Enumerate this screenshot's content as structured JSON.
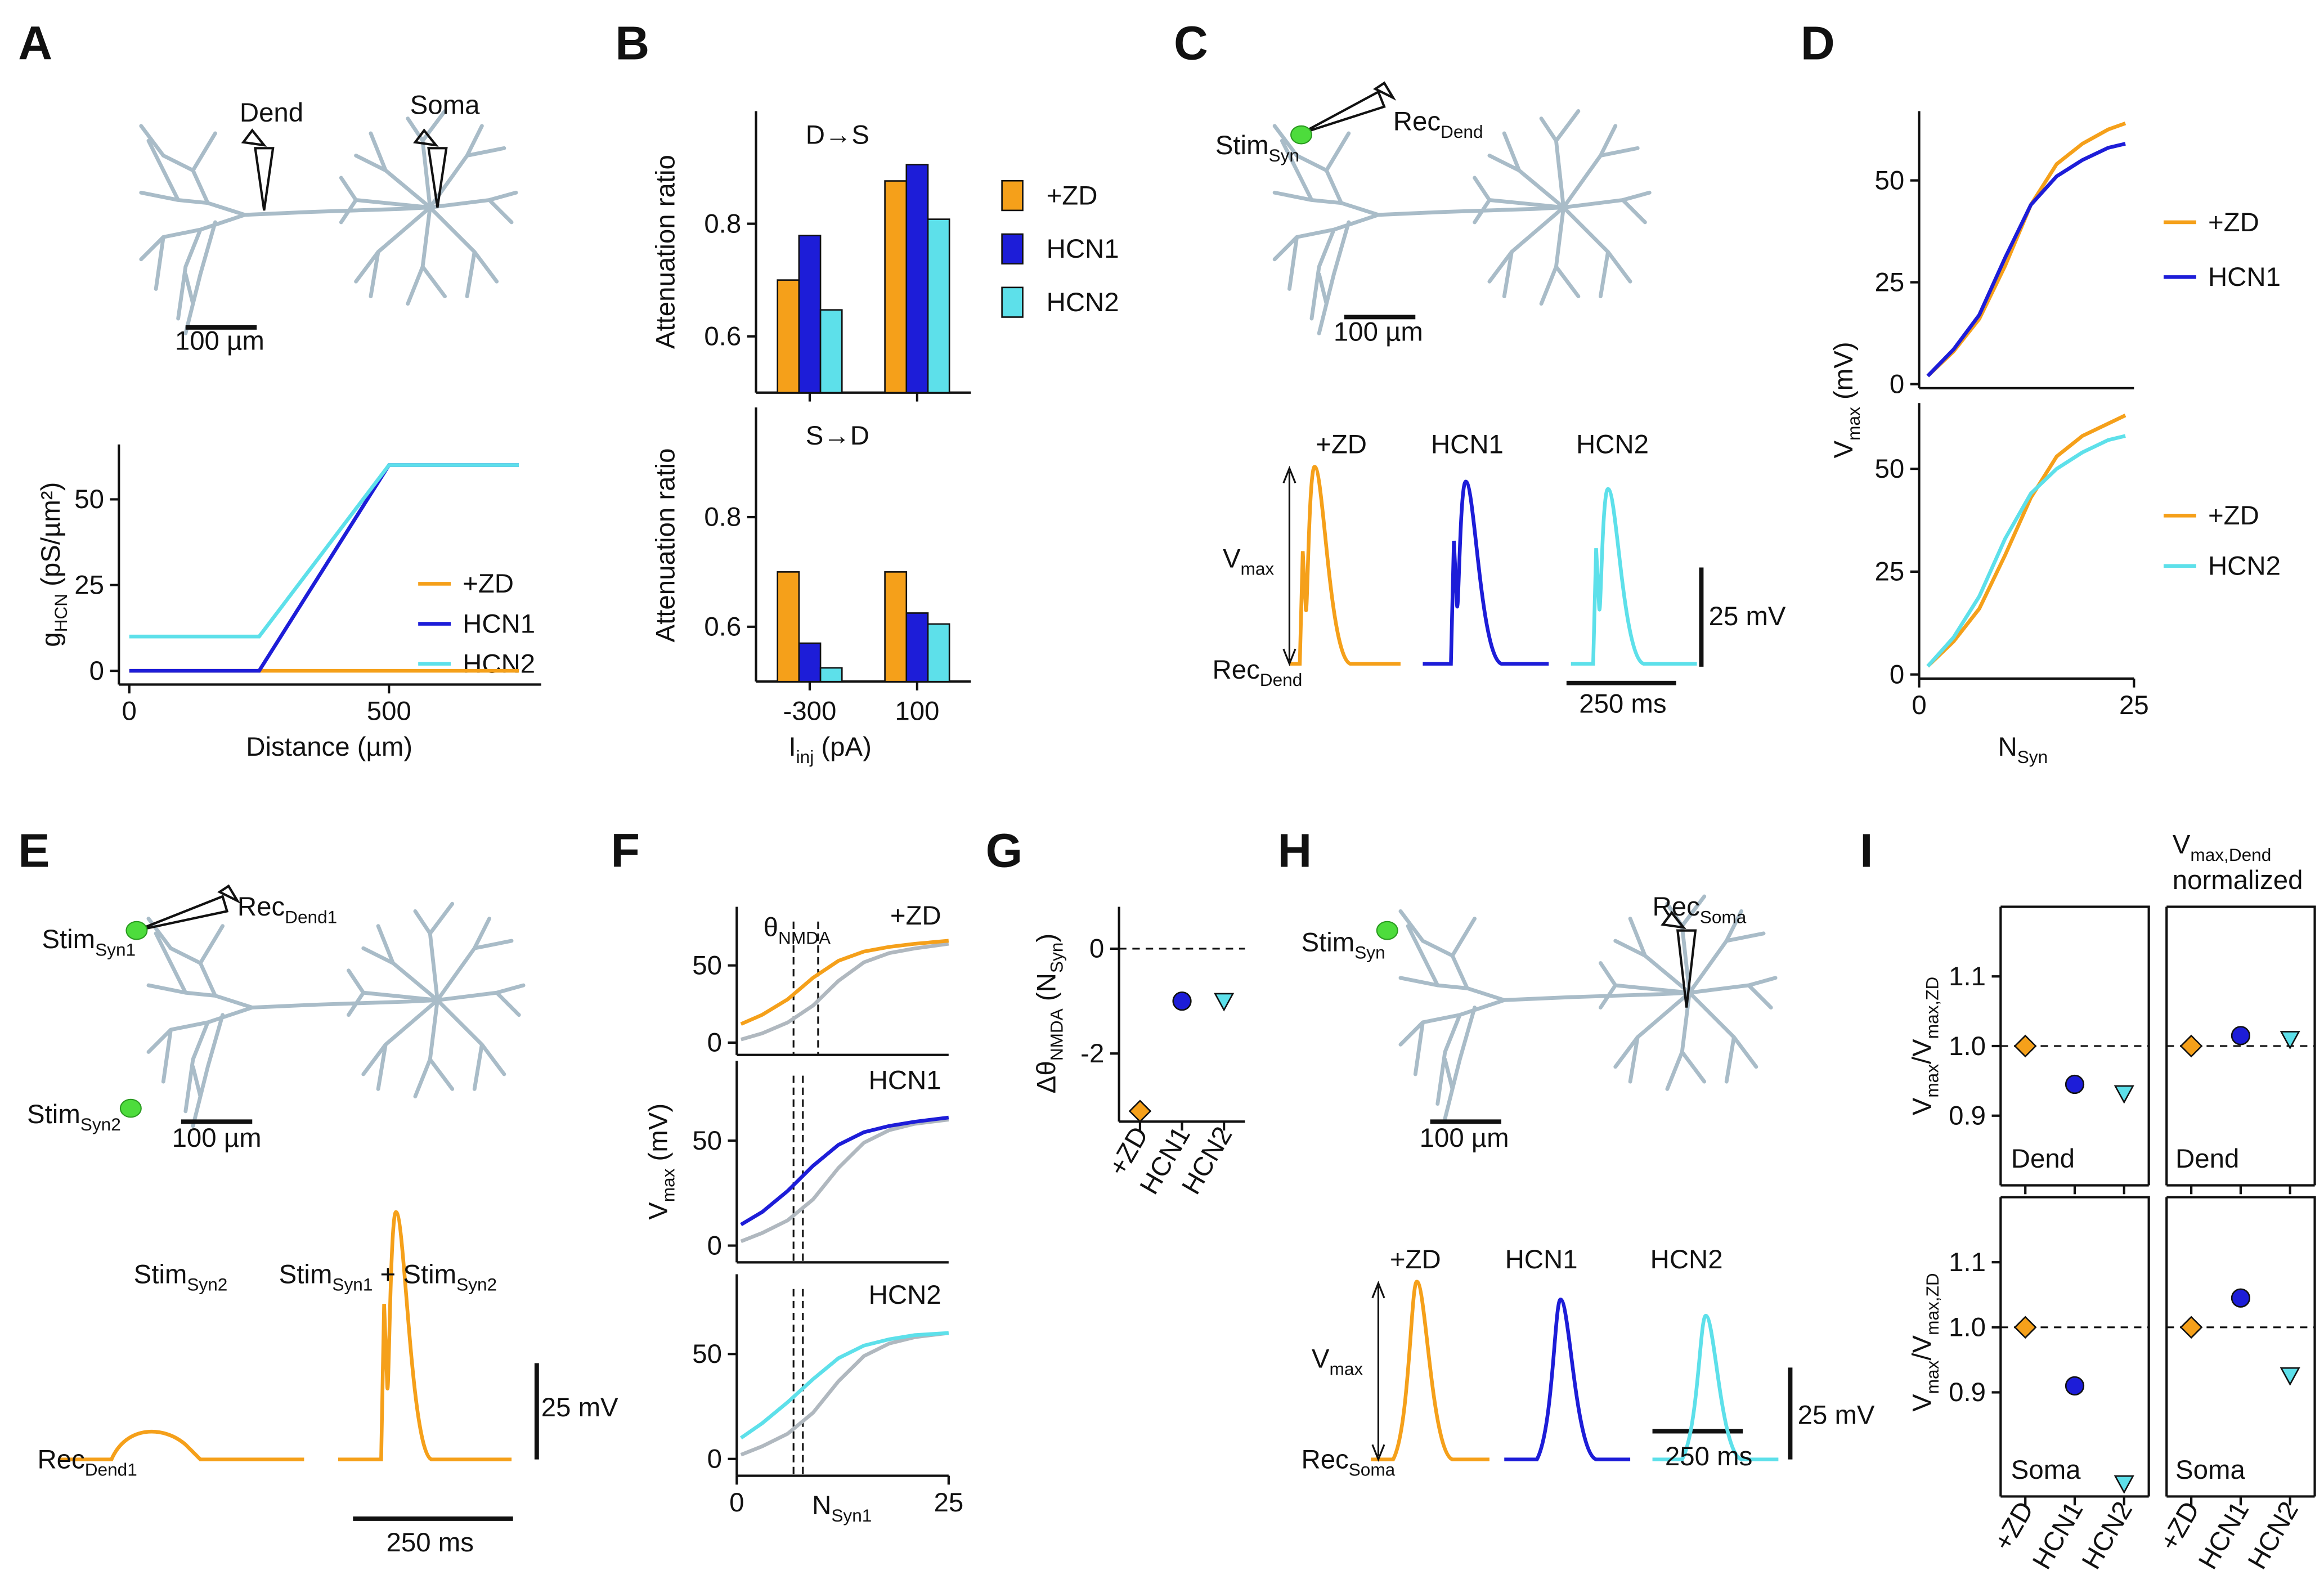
{
  "panel_labels": [
    "A",
    "B",
    "C",
    "D",
    "E",
    "F",
    "G",
    "H",
    "I"
  ],
  "annotations": [
    "Dend",
    "Soma",
    "100 µm",
    [
      {
        "text": "Stim"
      },
      {
        "text": "Syn",
        "sub": true
      }
    ],
    [
      {
        "text": "Rec"
      },
      {
        "text": "Dend",
        "sub": true
      }
    ],
    "100 µm",
    "+ZD",
    "HCN1",
    "HCN2",
    [
      {
        "text": "V"
      },
      {
        "text": "max",
        "sub": true
      }
    ],
    [
      {
        "text": "Rec"
      },
      {
        "text": "Dend",
        "sub": true
      }
    ],
    "25 mV",
    "250 ms",
    [
      {
        "text": "Stim"
      },
      {
        "text": "Syn1",
        "sub": true
      }
    ],
    [
      {
        "text": "Rec"
      },
      {
        "text": "Dend1",
        "sub": true
      }
    ],
    [
      {
        "text": "Stim"
      },
      {
        "text": "Syn2",
        "sub": true
      }
    ],
    "100 µm",
    [
      {
        "text": "Stim"
      },
      {
        "text": "Syn2",
        "sub": true
      }
    ],
    [
      {
        "text": "Stim"
      },
      {
        "text": "Syn1",
        "sub": true
      },
      {
        "text": " + Stim"
      },
      {
        "text": "Syn2",
        "sub": true
      }
    ],
    [
      {
        "text": "Rec"
      },
      {
        "text": "Dend1",
        "sub": true
      }
    ],
    "25 mV",
    "250 ms",
    [
      {
        "text": "Stim"
      },
      {
        "text": "Syn",
        "sub": true
      }
    ],
    [
      {
        "text": "Rec"
      },
      {
        "text": "Soma",
        "sub": true
      }
    ],
    "100 µm",
    "+ZD",
    "HCN1",
    "HCN2",
    [
      {
        "text": "V"
      },
      {
        "text": "max",
        "sub": true
      }
    ],
    [
      {
        "text": "Rec"
      },
      {
        "text": "Soma",
        "sub": true
      }
    ],
    "25 mV",
    "250 ms"
  ],
  "chart_data": [
    {
      "type": "line",
      "x": [
        0,
        250,
        500,
        750
      ],
      "series": [
        {
          "name": "+ZD",
          "color": "#f5a01a",
          "values": [
            0,
            0,
            0,
            0
          ]
        },
        {
          "name": "HCN1",
          "color": "#1d1dd8",
          "values": [
            0,
            0,
            60,
            60
          ]
        },
        {
          "name": "HCN2",
          "color": "#5de0ea",
          "values": [
            10,
            10,
            60,
            60
          ]
        }
      ],
      "xlim": [
        -20,
        793
      ],
      "ylim": [
        -4,
        66
      ],
      "xticks": [
        0,
        500
      ],
      "yticks": [
        0,
        25,
        50
      ],
      "x_label": "Distance (µm)",
      "y_label": [
        {
          "text": "g"
        },
        {
          "text": "HCN",
          "sub": true
        },
        {
          "text": " (pS/µm²)"
        }
      ]
    },
    {
      "type": "bar",
      "title": "D→S",
      "series": [
        {
          "name": "+ZD",
          "color": "#f5a01a",
          "values": [
            0.7,
            0.876
          ]
        },
        {
          "name": "HCN1",
          "color": "#1d1dd8",
          "values": [
            0.779,
            0.905
          ]
        },
        {
          "name": "HCN2",
          "color": "#5de0ea",
          "values": [
            0.647,
            0.808
          ]
        }
      ],
      "ylim": [
        0.5,
        1.0
      ],
      "yticks": [
        0.6,
        0.8
      ],
      "y_label": "Attenuation ratio"
    },
    {
      "type": "bar",
      "title": "S→D",
      "categories": [
        "-300",
        "100"
      ],
      "series": [
        {
          "color": "#f5a01a",
          "values": [
            0.7,
            0.7
          ]
        },
        {
          "color": "#1d1dd8",
          "values": [
            0.57,
            0.625
          ]
        },
        {
          "color": "#5de0ea",
          "values": [
            0.525,
            0.605
          ]
        }
      ],
      "ylim": [
        0.5,
        1.0
      ],
      "yticks": [
        0.6,
        0.8
      ],
      "y_label": "Attenuation ratio",
      "x_label": [
        {
          "text": "I"
        },
        {
          "text": "inj",
          "sub": true
        },
        {
          "text": " (pA)"
        }
      ]
    },
    {
      "type": "line",
      "x": [
        1,
        4,
        7,
        10,
        13,
        16,
        19,
        22,
        24
      ],
      "series": [
        {
          "name": "+ZD",
          "color": "#f5a01a",
          "values": [
            2,
            8,
            16,
            29,
            44,
            54,
            59,
            62.5,
            64
          ]
        },
        {
          "name": "HCN1",
          "color": "#1d1dd8",
          "values": [
            2,
            8.5,
            17,
            31,
            44,
            51,
            55,
            58,
            59
          ]
        }
      ],
      "xlim": [
        0,
        25
      ],
      "ylim": [
        -1,
        67
      ],
      "yticks": [
        0,
        25,
        50
      ]
    },
    {
      "type": "line",
      "x": [
        1,
        4,
        7,
        10,
        13,
        16,
        19,
        22,
        24
      ],
      "series": [
        {
          "name": "+ZD",
          "color": "#f5a01a",
          "values": [
            2,
            8,
            16,
            29,
            43,
            53,
            58,
            61,
            63
          ]
        },
        {
          "name": "HCN2",
          "color": "#5de0ea",
          "values": [
            2,
            9,
            19,
            33,
            44,
            50,
            54,
            57,
            58
          ]
        }
      ],
      "xlim": [
        0,
        25
      ],
      "ylim": [
        -1,
        66
      ],
      "xticks": [
        0,
        25
      ],
      "yticks": [
        0,
        25,
        50
      ],
      "x_label": [
        {
          "text": "N"
        },
        {
          "text": "Syn",
          "sub": true
        }
      ],
      "y_label": [
        {
          "text": "V"
        },
        {
          "text": "max",
          "sub": true
        },
        {
          "text": " (mV)"
        }
      ]
    },
    {
      "type": "line",
      "title": "+ZD",
      "x": [
        0.5,
        3,
        6,
        9,
        12,
        15,
        18,
        21,
        25
      ],
      "series": [
        {
          "color": "#b0b8bf",
          "values": [
            2,
            6,
            13,
            24,
            40,
            52,
            58,
            61,
            64
          ]
        },
        {
          "color": "#f5a01a",
          "values": [
            12,
            18,
            28,
            42,
            53,
            59,
            62,
            64,
            66
          ]
        }
      ],
      "xlim": [
        0,
        25
      ],
      "ylim": [
        -8,
        88
      ],
      "yticks": [
        0,
        50
      ],
      "vlines": [
        6.7,
        9.6
      ],
      "annotation": [
        {
          "text": "θ"
        },
        {
          "text": "NMDA",
          "sub": true
        }
      ]
    },
    {
      "type": "line",
      "title": "HCN1",
      "x": [
        0.5,
        3,
        6,
        9,
        12,
        15,
        18,
        21,
        25
      ],
      "series": [
        {
          "color": "#b0b8bf",
          "values": [
            2,
            6,
            12,
            22,
            37,
            49,
            55,
            58,
            60
          ]
        },
        {
          "color": "#1d1dd8",
          "values": [
            10,
            16,
            26,
            38,
            48,
            54,
            57,
            59,
            61
          ]
        }
      ],
      "xlim": [
        0,
        25
      ],
      "ylim": [
        -8,
        88
      ],
      "yticks": [
        0,
        50
      ],
      "vlines": [
        6.7,
        7.8
      ],
      "y_label": [
        {
          "text": "V"
        },
        {
          "text": "max",
          "sub": true
        },
        {
          "text": " (mV)"
        }
      ]
    },
    {
      "type": "line",
      "title": "HCN2",
      "x": [
        0.5,
        3,
        6,
        9,
        12,
        15,
        18,
        21,
        25
      ],
      "series": [
        {
          "color": "#b0b8bf",
          "values": [
            2,
            6,
            12,
            22,
            37,
            49,
            55,
            58,
            60
          ]
        },
        {
          "color": "#5de0ea",
          "values": [
            10,
            17,
            27,
            38,
            48,
            54,
            57,
            59,
            60
          ]
        }
      ],
      "xlim": [
        0,
        25
      ],
      "ylim": [
        -8,
        88
      ],
      "xticks": [
        0,
        25
      ],
      "yticks": [
        0,
        50
      ],
      "vlines": [
        6.7,
        7.8
      ],
      "x_label": [
        {
          "text": "N"
        },
        {
          "text": "Syn1",
          "sub": true
        }
      ]
    },
    {
      "type": "scatter",
      "categories": [
        "+ZD",
        "HCN1",
        "HCN2"
      ],
      "values": [
        -3.1,
        -1.0,
        -1.0
      ],
      "colors": [
        "#f5a01a",
        "#1d1dd8",
        "#5de0ea"
      ],
      "markers": [
        "diamond",
        "circle",
        "triangle"
      ],
      "ylim": [
        -3.3,
        0.8
      ],
      "yticks": [
        0,
        -2
      ],
      "ref_line": 0,
      "y_label": [
        {
          "text": "Δθ"
        },
        {
          "text": "NMDA",
          "sub": true
        },
        {
          "text": " (N"
        },
        {
          "text": "Syn",
          "sub": true
        },
        {
          "text": ")"
        }
      ]
    },
    {
      "type": "scatter",
      "values": [
        1.0,
        0.945,
        0.932
      ],
      "label": "Dend",
      "colors": [
        "#f5a01a",
        "#1d1dd8",
        "#5de0ea"
      ],
      "markers": [
        "diamond",
        "circle",
        "triangle"
      ],
      "ylim": [
        0.8,
        1.2
      ],
      "yticks": [
        0.9,
        {
          "value": 1,
          "label": "1.0"
        },
        1.1
      ],
      "ref_line": 1,
      "y_label": [
        {
          "text": "V"
        },
        {
          "text": "max",
          "sub": true
        },
        {
          "text": "/V"
        },
        {
          "text": "max,ZD",
          "sub": true
        }
      ]
    },
    {
      "type": "scatter",
      "values": [
        1.0,
        1.015,
        1.01
      ],
      "label": "Dend",
      "title": [
        {
          "text": "V"
        },
        {
          "text": "max,Dend",
          "sub": true
        }
      ],
      "subtitle": "normalized",
      "colors": [
        "#f5a01a",
        "#1d1dd8",
        "#5de0ea"
      ],
      "markers": [
        "diamond",
        "circle",
        "triangle"
      ],
      "ylim": [
        0.8,
        1.2
      ],
      "ref_line": 1
    },
    {
      "type": "scatter",
      "categories": [
        "+ZD",
        "HCN1",
        "HCN2"
      ],
      "values": [
        1.0,
        0.91,
        0.76
      ],
      "label": "Soma",
      "colors": [
        "#f5a01a",
        "#1d1dd8",
        "#5de0ea"
      ],
      "markers": [
        "diamond",
        "circle",
        "triangle"
      ],
      "ylim": [
        0.74,
        1.2
      ],
      "yticks": [
        0.9,
        {
          "value": 1,
          "label": "1.0"
        },
        1.1
      ],
      "ref_line": 1,
      "y_label": [
        {
          "text": "V"
        },
        {
          "text": "max",
          "sub": true
        },
        {
          "text": "/V"
        },
        {
          "text": "max,ZD",
          "sub": true
        }
      ]
    },
    {
      "type": "scatter",
      "categories": [
        "+ZD",
        "HCN1",
        "HCN2"
      ],
      "values": [
        1.0,
        1.045,
        0.926
      ],
      "label": "Soma",
      "colors": [
        "#f5a01a",
        "#1d1dd8",
        "#5de0ea"
      ],
      "markers": [
        "diamond",
        "circle",
        "triangle"
      ],
      "ylim": [
        0.74,
        1.2
      ],
      "ref_line": 1
    }
  ]
}
